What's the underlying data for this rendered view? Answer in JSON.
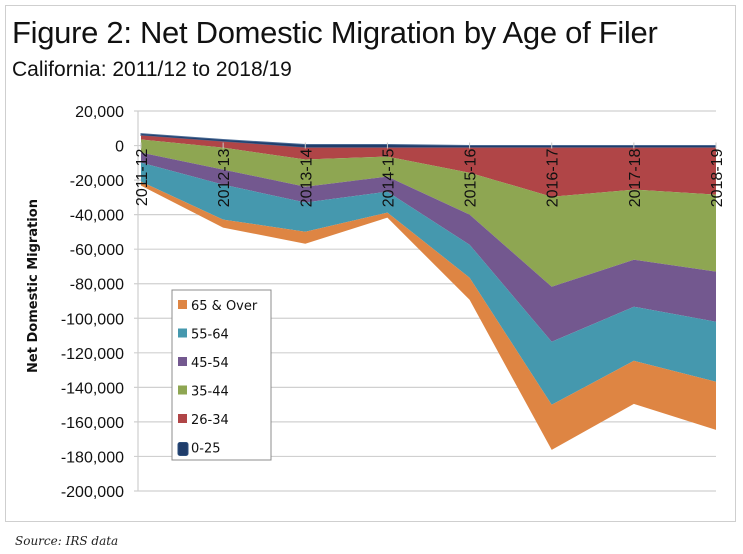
{
  "title": "Figure 2: Net Domestic Migration by Age of Filer",
  "subtitle": "California: 2011/12 to 2018/19",
  "source": "Source: IRS data",
  "chart_data": {
    "type": "area",
    "stacked": true,
    "title": "Figure 2: Net Domestic Migration by Age of Filer",
    "subtitle": "California: 2011/12 to 2018/19",
    "xlabel": "",
    "ylabel": "Net Domestic Migration",
    "ylim": [
      -200000,
      20000
    ],
    "ytick_step": 20000,
    "yticks": [
      "20,000",
      "0",
      "-20,000",
      "-40,000",
      "-60,000",
      "-80,000",
      "-100,000",
      "-120,000",
      "-140,000",
      "-160,000",
      "-180,000",
      "-200,000"
    ],
    "grid": true,
    "legend_position": "lower-left",
    "categories": [
      "2011-12",
      "2012-13",
      "2013-14",
      "2014-15",
      "2015-16",
      "2016-17",
      "2017-18",
      "2018-19"
    ],
    "stack_top": [
      6900,
      3500,
      600,
      600,
      0,
      0,
      0,
      0
    ],
    "series": [
      {
        "name": "0-25",
        "color": "#1f3d6b",
        "values": [
          -1100,
          -1200,
          -1800,
          -1800,
          -1200,
          -1200,
          -1200,
          -1200
        ]
      },
      {
        "name": "26-34",
        "color": "#b04547",
        "values": [
          -2300,
          -3500,
          -6900,
          -5200,
          -14500,
          -28400,
          -24300,
          -27200
        ]
      },
      {
        "name": "35-44",
        "color": "#8ea652",
        "values": [
          -7600,
          -12700,
          -15700,
          -11600,
          -24300,
          -52100,
          -40600,
          -44600
        ]
      },
      {
        "name": "45-54",
        "color": "#73588f",
        "values": [
          -5800,
          -8700,
          -9200,
          -8700,
          -17400,
          -31900,
          -27200,
          -29000
        ]
      },
      {
        "name": "55-64",
        "color": "#4598ae",
        "values": [
          -11000,
          -20300,
          -16900,
          -12100,
          -19100,
          -36500,
          -31300,
          -34800
        ]
      },
      {
        "name": "65 & Over",
        "color": "#de8543",
        "values": [
          -2300,
          -4600,
          -6900,
          -2900,
          -12800,
          -26100,
          -25000,
          -27800
        ]
      }
    ],
    "legend": [
      "65 & Over",
      "55-64",
      "45-54",
      "35-44",
      "26-34",
      "0-25"
    ]
  }
}
